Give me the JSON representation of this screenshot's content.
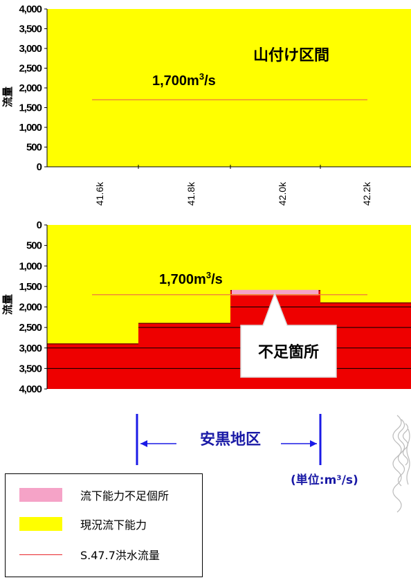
{
  "chart_data": [
    {
      "type": "area",
      "title": "山付け区間",
      "ylabel": "流量",
      "yticks": [
        "0",
        "500",
        "1,000",
        "1,500",
        "2,000",
        "2,500",
        "3,000",
        "3,500",
        "4,000"
      ],
      "ylim": [
        0,
        4000
      ],
      "x_categories": [
        "41.6k",
        "41.8k",
        "42.0k",
        "42.2k"
      ],
      "series": [
        {
          "name": "現況流下能力",
          "color": "#ffff00",
          "value": 4000
        },
        {
          "name": "S.47.7洪水流量",
          "color": "#f08a38",
          "value": 1700
        }
      ],
      "annotation": "1,700m3/s"
    },
    {
      "type": "area",
      "ylabel": "流量",
      "yticks": [
        "0",
        "500",
        "1,000",
        "1,500",
        "2,000",
        "2,500",
        "3,000",
        "3,500",
        "4,000"
      ],
      "ylim": [
        0,
        4000
      ],
      "inverted": true,
      "capacity_steps": [
        {
          "x_from": 0,
          "x_to": 1,
          "value": 2900
        },
        {
          "x_from": 1,
          "x_to": 2,
          "value": 2400
        },
        {
          "x_from": 2,
          "x_to": 3,
          "value": 1600
        },
        {
          "x_from": 3,
          "x_to": 4,
          "value": 1900
        }
      ],
      "design_flow": 1700,
      "shortage": {
        "x_from": 2,
        "x_to": 2.97,
        "from": 1600,
        "to": 1700
      },
      "annotation": "1,700m3/s",
      "callout": "不足箇所"
    }
  ],
  "district": "安黒地区",
  "unit": "(単位:m³/s)",
  "legend": [
    {
      "label": "流下能力不足個所",
      "color": "#f5a3c7",
      "kind": "box"
    },
    {
      "label": "現況流下能力",
      "color": "#ffff00",
      "kind": "box"
    },
    {
      "label": "S.47.7洪水流量",
      "color": "#e8262a",
      "kind": "line"
    }
  ]
}
